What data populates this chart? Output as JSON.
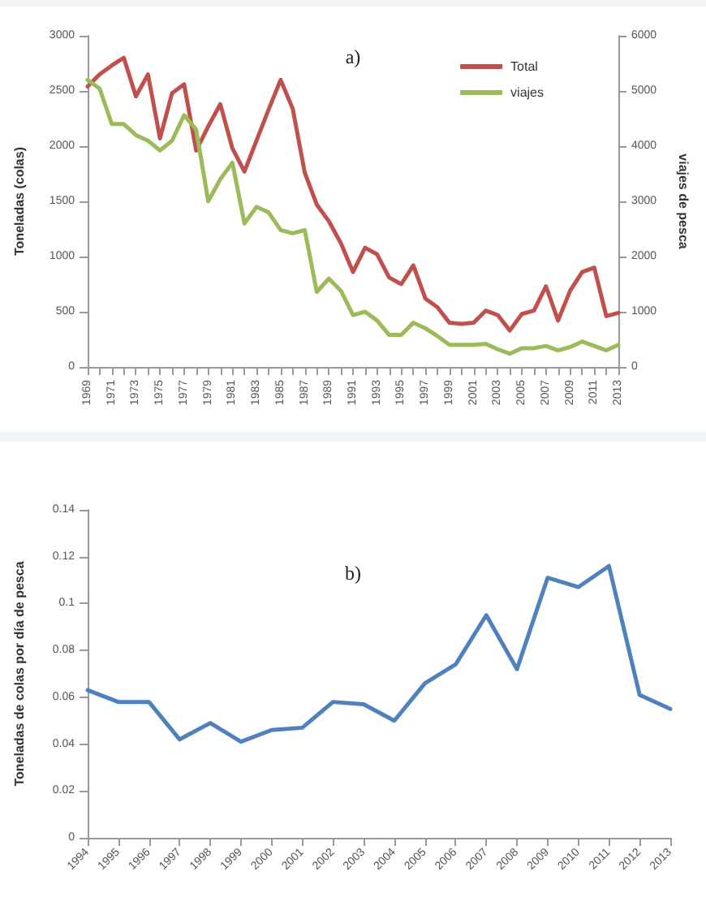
{
  "chart_data": [
    {
      "type": "line",
      "title": "a)",
      "ylabel": "Toneladas (colas)",
      "y2label": "viajes de pesca",
      "categories": [
        "1969",
        null,
        "1971",
        null,
        "1973",
        null,
        "1975",
        null,
        "1977",
        null,
        "1979",
        null,
        "1981",
        null,
        "1983",
        null,
        "1985",
        null,
        "1987",
        null,
        "1989",
        null,
        "1991",
        null,
        "1993",
        null,
        "1995",
        null,
        "1997",
        null,
        "1999",
        null,
        "2001",
        null,
        "2003",
        null,
        "2005",
        null,
        "2007",
        null,
        "2009",
        null,
        "2011",
        null,
        "2013"
      ],
      "series": [
        {
          "name": "Total",
          "color": "#c0504d",
          "values": [
            2540,
            2650,
            2730,
            2800,
            2450,
            2650,
            2070,
            2480,
            2560,
            1960,
            2180,
            2380,
            1980,
            1770,
            2050,
            2330,
            2600,
            2340,
            1760,
            1470,
            1320,
            1120,
            860,
            1080,
            1020,
            810,
            750,
            920,
            620,
            540,
            400,
            390,
            400,
            510,
            470,
            330,
            480,
            510,
            730,
            420,
            690,
            860,
            900,
            460,
            490
          ]
        },
        {
          "name": "viajes",
          "color": "#9bbb59",
          "axis": "y2",
          "values": [
            5200,
            5040,
            4400,
            4400,
            4200,
            4100,
            3920,
            4100,
            4560,
            4300,
            3000,
            3400,
            3700,
            2600,
            2900,
            2800,
            2480,
            2420,
            2480,
            1360,
            1600,
            1380,
            940,
            1000,
            840,
            580,
            580,
            800,
            700,
            560,
            400,
            400,
            400,
            420,
            320,
            240,
            340,
            340,
            380,
            300,
            360,
            460,
            380,
            300,
            400
          ]
        }
      ],
      "ylim": [
        0,
        3000
      ],
      "yticks": [
        0,
        500,
        1000,
        1500,
        2000,
        2500,
        3000
      ],
      "y2lim": [
        0,
        6000
      ],
      "y2ticks": [
        0,
        1000,
        2000,
        3000,
        4000,
        5000,
        6000
      ],
      "grid": false,
      "legend": "top right",
      "marker": "none",
      "line_style": "solid"
    },
    {
      "type": "line",
      "title": "b)",
      "ylabel": "Toneladas de colas por día de pesca",
      "categories": [
        "1994",
        "1995",
        "1996",
        "1997",
        "1998",
        "1999",
        "2000",
        "2001",
        "2002",
        "2003",
        "2004",
        "2005",
        "2006",
        "2007",
        "2008",
        "2009",
        "2010",
        "2011",
        "2012",
        "2013"
      ],
      "series": [
        {
          "color": "#4f81bd",
          "values": [
            0.063,
            0.058,
            0.058,
            0.042,
            0.049,
            0.041,
            0.046,
            0.047,
            0.058,
            0.057,
            0.05,
            0.066,
            0.074,
            0.095,
            0.072,
            0.111,
            0.107,
            0.116,
            0.061,
            0.055
          ]
        }
      ],
      "ylim": [
        0,
        0.14
      ],
      "yticks": [
        0,
        0.02,
        0.04,
        0.06,
        0.08,
        0.1,
        0.12,
        0.14
      ],
      "grid": false,
      "marker": "none",
      "line_style": "solid"
    }
  ]
}
